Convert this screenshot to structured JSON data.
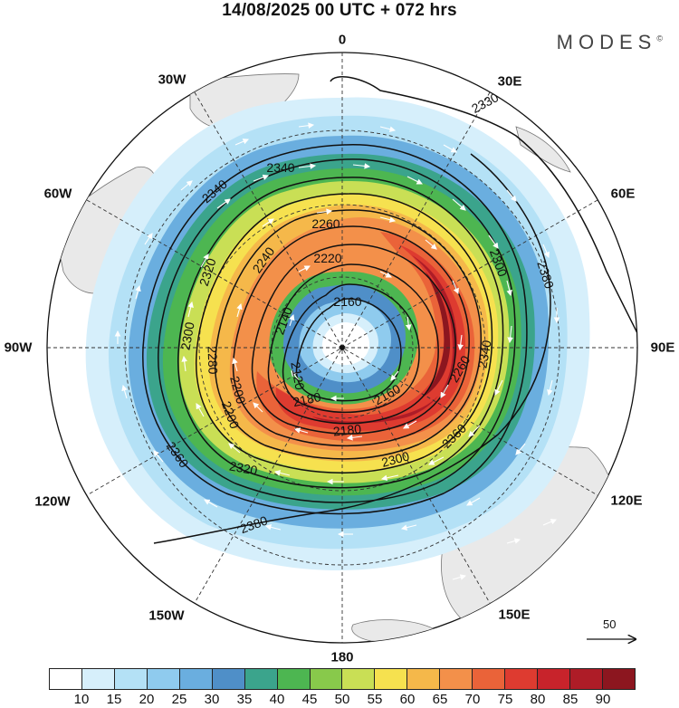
{
  "title": "14/08/2025  00 UTC  + 072 hrs",
  "brand": "MODES",
  "brand_mark": "©",
  "longitude_labels": {
    "lon_0": "0",
    "lon_30e": "30E",
    "lon_60e": "60E",
    "lon_90e": "90E",
    "lon_120e": "120E",
    "lon_150e": "150E",
    "lon_180": "180",
    "lon_150w": "150W",
    "lon_120w": "120W",
    "lon_90w": "90W",
    "lon_60w": "60W",
    "lon_30w": "30W"
  },
  "contour_labels": [
    "2330",
    "2340",
    "2380",
    "2320",
    "2280",
    "2260",
    "2240",
    "2220",
    "2160",
    "2140",
    "2120",
    "2300",
    "2200",
    "2180",
    "2360",
    "2340",
    "2340",
    "2320",
    "2300",
    "2300",
    "2260",
    "2200",
    "2160",
    "2180",
    "2360",
    "2380"
  ],
  "reference_vector": {
    "label": "50"
  },
  "colorbar": {
    "colors": [
      "#ffffff",
      "#d6effb",
      "#b4e1f6",
      "#8fcbee",
      "#6aaedf",
      "#4f8fc8",
      "#3ba48c",
      "#4db651",
      "#88c94b",
      "#c9df55",
      "#f6e14f",
      "#f5b84a",
      "#f3904a",
      "#ea6339",
      "#de3b30",
      "#c8232b",
      "#ae1c27",
      "#8c161f"
    ],
    "ticks": [
      "10",
      "15",
      "20",
      "25",
      "30",
      "35",
      "40",
      "45",
      "50",
      "55",
      "60",
      "65",
      "70",
      "75",
      "80",
      "85",
      "90"
    ]
  }
}
